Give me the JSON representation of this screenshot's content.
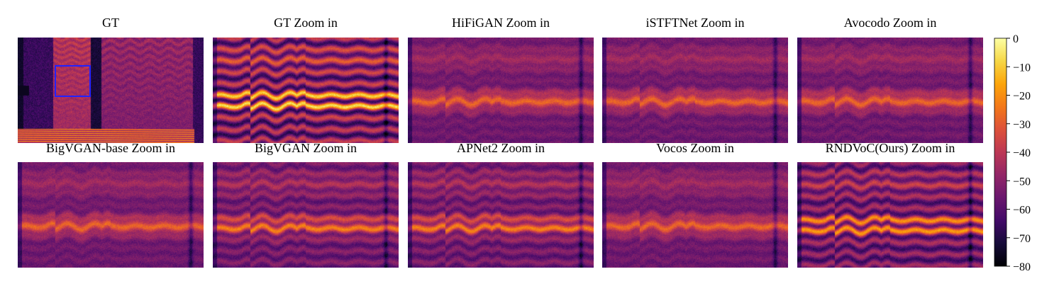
{
  "chart_data": {
    "type": "heatmap",
    "panels": [
      {
        "title": "GT",
        "kind": "full",
        "has_box": true
      },
      {
        "title": "GT Zoom in",
        "kind": "gt_zoom"
      },
      {
        "title": "HiFiGAN Zoom in",
        "kind": "blurry"
      },
      {
        "title": "iSTFTNet Zoom in",
        "kind": "blurry"
      },
      {
        "title": "Avocodo Zoom in",
        "kind": "blurry"
      },
      {
        "title": "BigVGAN-base Zoom in",
        "kind": "blurry"
      },
      {
        "title": "BigVGAN Zoom in",
        "kind": "semi"
      },
      {
        "title": "APNet2 Zoom in",
        "kind": "semi"
      },
      {
        "title": "Vocos Zoom in",
        "kind": "blurry"
      },
      {
        "title": "RNDVoC(Ours) Zoom in",
        "kind": "sharp"
      }
    ],
    "colorbar": {
      "colormap": "inferno",
      "range": [
        -80,
        0
      ],
      "ticks": [
        "0",
        "−10",
        "−20",
        "−30",
        "−40",
        "−50",
        "−60",
        "−70",
        "−80"
      ]
    },
    "zoom_box_color": "#2222ff"
  }
}
